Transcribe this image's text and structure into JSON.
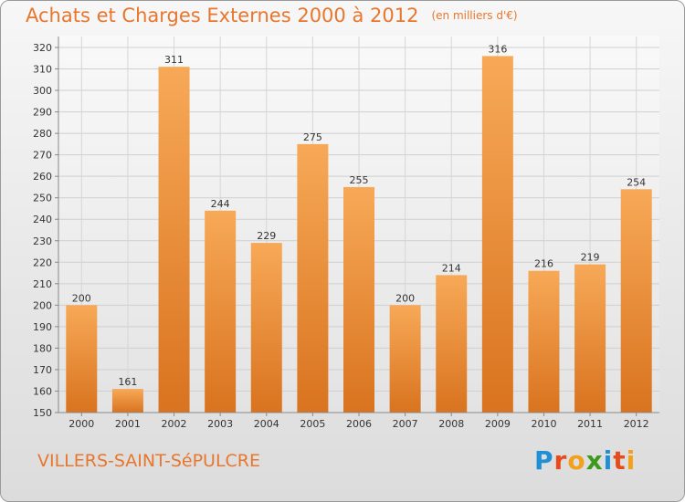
{
  "title": "Achats et Charges Externes 2000 à 2012",
  "subtitle": "(en milliers d'€)",
  "city": "VILLERS-SAINT-SéPULCRE",
  "logo": {
    "letters": [
      "P",
      "r",
      "o",
      "x",
      "i",
      "t",
      "i"
    ],
    "colors": [
      "#1f8fd6",
      "#e84b1b",
      "#f3a01c",
      "#3c9a1f",
      "#1f8fd6",
      "#e84b1b",
      "#f3a01c"
    ]
  },
  "colors": {
    "accent": "#e8762d",
    "bar_light": "#f7a957",
    "bar_dark": "#d9731f"
  },
  "chart_data": {
    "type": "bar",
    "title": "Achats et Charges Externes 2000 à 2012",
    "categories": [
      "2000",
      "2001",
      "2002",
      "2003",
      "2004",
      "2005",
      "2006",
      "2007",
      "2008",
      "2009",
      "2010",
      "2011",
      "2012"
    ],
    "values": [
      200,
      161,
      311,
      244,
      229,
      275,
      255,
      200,
      214,
      316,
      216,
      219,
      254
    ],
    "data_labels": [
      "200",
      "161",
      "311",
      "244",
      "229",
      "275",
      "255",
      "200",
      "214",
      "316",
      "216",
      "219",
      "254"
    ],
    "yticks": [
      150,
      160,
      170,
      180,
      190,
      200,
      210,
      220,
      230,
      240,
      250,
      260,
      270,
      280,
      290,
      300,
      310,
      320
    ],
    "ylim": [
      150,
      320
    ],
    "xlabel": "",
    "ylabel": "",
    "grid": true
  }
}
